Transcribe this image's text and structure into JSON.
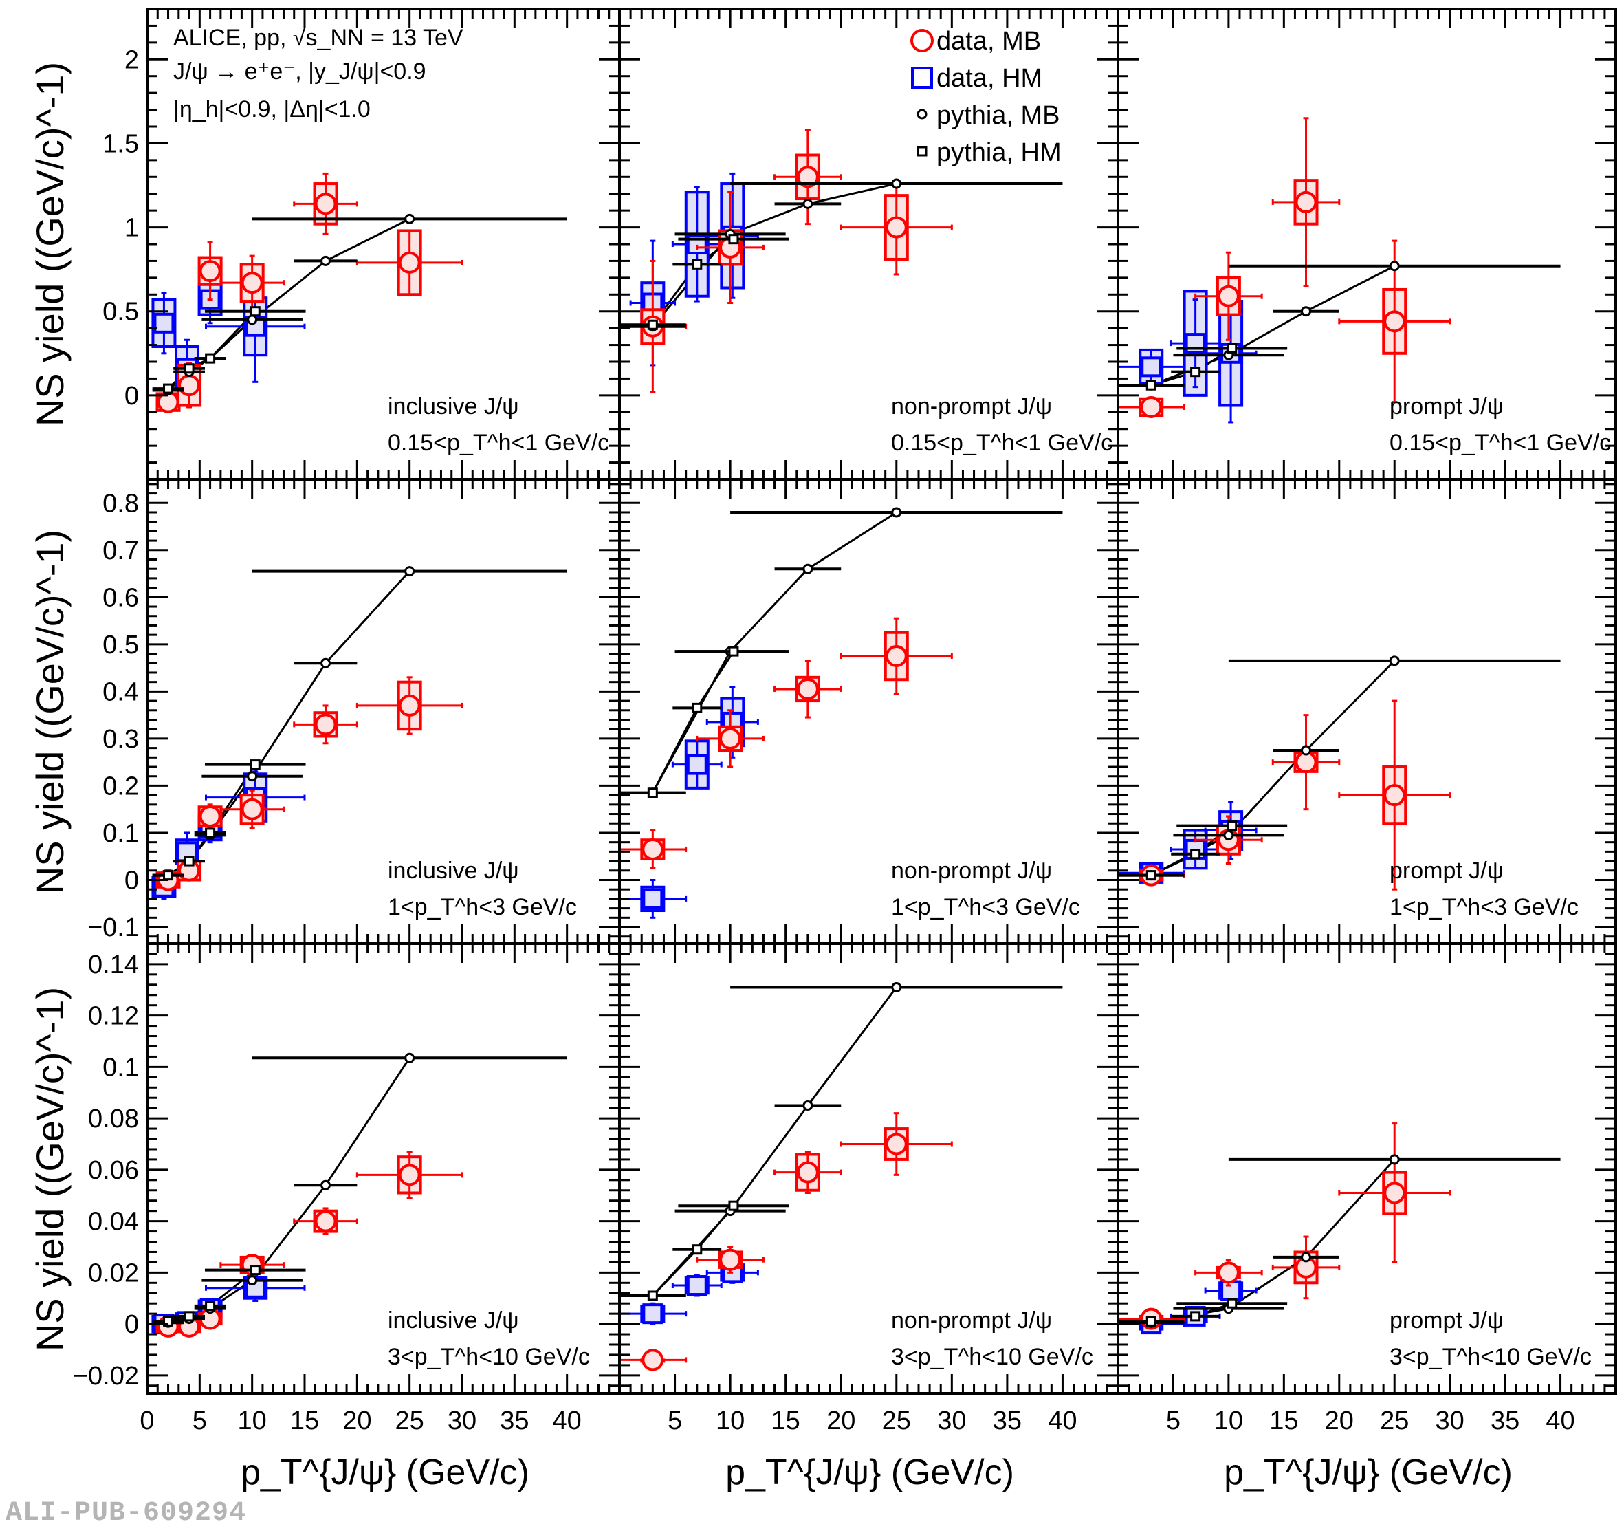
{
  "watermark": "ALI-PUB-609294",
  "colors": {
    "mb": "#ff0000",
    "hm": "#0000ff",
    "pythia": "#000000",
    "mb_fill": "#fde2e2",
    "hm_fill": "#e0e0f8"
  },
  "legend": [
    {
      "key": "data_mb",
      "label": "data, MB",
      "marker": "open-circle",
      "color": "#ff0000"
    },
    {
      "key": "data_hm",
      "label": "data, HM",
      "marker": "open-square",
      "color": "#0000ff"
    },
    {
      "key": "pythia_mb",
      "label": "pythia, MB",
      "marker": "small-open-circle",
      "color": "#000000"
    },
    {
      "key": "pythia_hm",
      "label": "pythia, HM",
      "marker": "small-open-square",
      "color": "#000000"
    }
  ],
  "header_text": {
    "line1": "ALICE, pp,  √s_NN = 13 TeV",
    "line2": "J/ψ  → e⁺e⁻, |y_J/ψ|<0.9",
    "line3": "|η_h|<0.9, |Δη|<1.0"
  },
  "chart_data": {
    "type": "scatter",
    "title": "",
    "xlabel": "p_T^{J/ψ} (GeV/c)",
    "ylabel": "NS yield ((GeV/c)^-1)",
    "xlim": [
      0,
      45
    ],
    "xticks": [
      0,
      5,
      10,
      15,
      20,
      25,
      30,
      35,
      40
    ],
    "legend_placement": "top-middle panel, upper-right",
    "grid": false,
    "rows": [
      {
        "assoc_label": "0.15<p_T^h<1 GeV/c",
        "ylim": [
          -0.5,
          2.3
        ],
        "yticks": [
          "0",
          "0.5",
          "1",
          "1.5",
          "2"
        ],
        "ytick_values": [
          0,
          0.5,
          1,
          1.5,
          2
        ]
      },
      {
        "assoc_label": "1<p_T^h<3 GeV/c",
        "ylim": [
          -0.135,
          0.85
        ],
        "yticks": [
          "−0.1",
          "0",
          "0.1",
          "0.2",
          "0.3",
          "0.4",
          "0.5",
          "0.6",
          "0.7",
          "0.8"
        ],
        "ytick_values": [
          -0.1,
          0,
          0.1,
          0.2,
          0.3,
          0.4,
          0.5,
          0.6,
          0.7,
          0.8
        ]
      },
      {
        "assoc_label": "3<p_T^h<10 GeV/c",
        "ylim": [
          -0.027,
          0.148
        ],
        "yticks": [
          "−0.02",
          "0",
          "0.02",
          "0.04",
          "0.06",
          "0.08",
          "0.1",
          "0.12",
          "0.14"
        ],
        "ytick_values": [
          -0.02,
          0,
          0.02,
          0.04,
          0.06,
          0.08,
          0.1,
          0.12,
          0.14
        ]
      }
    ],
    "columns": [
      "inclusive J/ψ",
      "non-prompt J/ψ",
      "prompt J/ψ"
    ],
    "panels": [
      {
        "row": 0,
        "col": 0,
        "data_mb": [
          [
            2,
            -0.04,
            1,
            0.03,
            0.05
          ],
          [
            4,
            0.06,
            1,
            0.13,
            0.12
          ],
          [
            6,
            0.74,
            1,
            0.17,
            0.08
          ],
          [
            10,
            0.67,
            3,
            0.16,
            0.11
          ],
          [
            17,
            1.14,
            3,
            0.18,
            0.12
          ],
          [
            25,
            0.79,
            5,
            0.19,
            0.19
          ]
        ],
        "data_hm": [
          [
            1.6,
            0.43,
            1,
            0.18,
            0.14
          ],
          [
            3.8,
            0.16,
            1,
            0.17,
            0.13
          ],
          [
            6,
            0.57,
            1,
            0.14,
            0.09
          ],
          [
            10.3,
            0.41,
            4.7,
            0.33,
            0.17
          ]
        ],
        "pythia_mb": [
          [
            2,
            0.03,
            1.5
          ],
          [
            4,
            0.14,
            1.5
          ],
          [
            6,
            0.22,
            1.5
          ],
          [
            10,
            0.45,
            4.8
          ],
          [
            17,
            0.8,
            3
          ],
          [
            25,
            1.05,
            15
          ]
        ],
        "pythia_hm": [
          [
            2,
            0.04,
            1.5
          ],
          [
            4,
            0.16,
            1.5
          ],
          [
            6,
            0.22,
            1.5
          ],
          [
            10.3,
            0.5,
            4.8
          ]
        ]
      },
      {
        "row": 0,
        "col": 1,
        "data_mb": [
          [
            3,
            0.41,
            3,
            0.39,
            0.1
          ],
          [
            10,
            0.88,
            3,
            0.33,
            0.1
          ],
          [
            17,
            1.3,
            3,
            0.28,
            0.13
          ],
          [
            25,
            1.0,
            5,
            0.28,
            0.19
          ]
        ],
        "data_hm": [
          [
            3,
            0.55,
            2,
            0.37,
            0.12
          ],
          [
            7,
            0.9,
            2.2,
            0.34,
            0.31
          ],
          [
            10.2,
            0.95,
            2.3,
            0.37,
            0.31
          ]
        ],
        "pythia_mb": [
          [
            3,
            0.41,
            3
          ],
          [
            10,
            0.96,
            5
          ],
          [
            17,
            1.14,
            3
          ],
          [
            25,
            1.26,
            15
          ]
        ],
        "pythia_hm": [
          [
            3,
            0.42,
            3
          ],
          [
            7,
            0.78,
            2.2
          ],
          [
            10.3,
            0.93,
            5
          ]
        ]
      },
      {
        "row": 0,
        "col": 2,
        "data_mb": [
          [
            3,
            -0.07,
            3,
            0.02,
            0.05
          ],
          [
            10,
            0.59,
            3,
            0.26,
            0.11
          ],
          [
            17,
            1.15,
            3,
            0.5,
            0.13
          ],
          [
            25,
            0.44,
            5,
            0.48,
            0.19
          ]
        ],
        "data_hm": [
          [
            3,
            0.17,
            3,
            0.1,
            0.1
          ],
          [
            7,
            0.31,
            2.2,
            0.26,
            0.31
          ],
          [
            10.2,
            0.25,
            2.3,
            0.41,
            0.31
          ]
        ],
        "pythia_mb": [
          [
            3,
            0.06,
            3
          ],
          [
            10,
            0.24,
            5
          ],
          [
            17,
            0.5,
            3
          ],
          [
            25,
            0.77,
            15
          ]
        ],
        "pythia_hm": [
          [
            3,
            0.06,
            3
          ],
          [
            7,
            0.14,
            2.2
          ],
          [
            10.3,
            0.28,
            5
          ]
        ]
      },
      {
        "row": 1,
        "col": 0,
        "data_mb": [
          [
            2,
            0.0,
            1,
            0.02,
            0.015
          ],
          [
            4,
            0.02,
            1,
            0.02,
            0.02
          ],
          [
            6,
            0.135,
            1,
            0.025,
            0.02
          ],
          [
            10,
            0.15,
            3,
            0.04,
            0.03
          ],
          [
            17,
            0.33,
            3,
            0.04,
            0.025
          ],
          [
            25,
            0.37,
            5,
            0.06,
            0.05
          ]
        ],
        "data_hm": [
          [
            1.6,
            -0.015,
            1,
            0.025,
            0.02
          ],
          [
            3.8,
            0.06,
            1,
            0.04,
            0.025
          ],
          [
            6,
            0.11,
            1,
            0.03,
            0.025
          ],
          [
            10.3,
            0.175,
            4.7,
            0.055,
            0.05
          ]
        ],
        "pythia_mb": [
          [
            2,
            0.01,
            1.5
          ],
          [
            4,
            0.04,
            1.5
          ],
          [
            6,
            0.095,
            1.5
          ],
          [
            10,
            0.22,
            4.8
          ],
          [
            17,
            0.46,
            3
          ],
          [
            25,
            0.655,
            15
          ]
        ],
        "pythia_hm": [
          [
            2,
            0.01,
            1.5
          ],
          [
            4,
            0.04,
            1.5
          ],
          [
            6,
            0.1,
            1.5
          ],
          [
            10.3,
            0.245,
            4.8
          ]
        ]
      },
      {
        "row": 1,
        "col": 1,
        "data_mb": [
          [
            3,
            0.065,
            3,
            0.04,
            0.02
          ],
          [
            10,
            0.3,
            3,
            0.06,
            0.025
          ],
          [
            17,
            0.405,
            3,
            0.06,
            0.025
          ],
          [
            25,
            0.475,
            5,
            0.08,
            0.05
          ]
        ],
        "data_hm": [
          [
            3,
            -0.04,
            3,
            0.04,
            0.025
          ],
          [
            7,
            0.245,
            2.2,
            0.05,
            0.05
          ],
          [
            10.2,
            0.335,
            2.3,
            0.075,
            0.05
          ]
        ],
        "pythia_mb": [
          [
            3,
            0.185,
            3
          ],
          [
            10,
            0.485,
            5
          ],
          [
            17,
            0.66,
            3
          ],
          [
            25,
            0.78,
            15
          ]
        ],
        "pythia_hm": [
          [
            3,
            0.185,
            3
          ],
          [
            7,
            0.365,
            2.2
          ],
          [
            10.3,
            0.485,
            5
          ]
        ]
      },
      {
        "row": 1,
        "col": 2,
        "data_mb": [
          [
            3,
            0.01,
            3,
            0.01,
            0.01
          ],
          [
            10,
            0.085,
            3,
            0.05,
            0.03
          ],
          [
            17,
            0.25,
            3,
            0.1,
            0.02
          ],
          [
            25,
            0.18,
            5,
            0.2,
            0.06
          ]
        ],
        "data_hm": [
          [
            3,
            0.015,
            3,
            0.02,
            0.02
          ],
          [
            7,
            0.065,
            2.2,
            0.04,
            0.04
          ],
          [
            10.2,
            0.105,
            2.3,
            0.06,
            0.04
          ]
        ],
        "pythia_mb": [
          [
            3,
            0.01,
            3
          ],
          [
            10,
            0.095,
            5
          ],
          [
            17,
            0.275,
            3
          ],
          [
            25,
            0.465,
            15
          ]
        ],
        "pythia_hm": [
          [
            3,
            0.01,
            3
          ],
          [
            7,
            0.055,
            2.2
          ],
          [
            10.3,
            0.115,
            5
          ]
        ]
      },
      {
        "row": 2,
        "col": 0,
        "data_mb": [
          [
            2,
            -0.001,
            1,
            0.002,
            0.002
          ],
          [
            4,
            -0.001,
            1,
            0.002,
            0.002
          ],
          [
            6,
            0.002,
            1,
            0.003,
            0.002
          ],
          [
            10,
            0.023,
            3,
            0.003,
            0.003
          ],
          [
            17,
            0.04,
            3,
            0.005,
            0.004
          ],
          [
            25,
            0.058,
            5,
            0.009,
            0.007
          ]
        ],
        "data_hm": [
          [
            1.6,
            0.0,
            1,
            0.002,
            0.003
          ],
          [
            3.8,
            0.001,
            1,
            0.002,
            0.003
          ],
          [
            6,
            0.006,
            1,
            0.003,
            0.003
          ],
          [
            10.3,
            0.014,
            4.7,
            0.005,
            0.004
          ]
        ],
        "pythia_mb": [
          [
            2,
            0.0005,
            1.5
          ],
          [
            4,
            0.002,
            1.5
          ],
          [
            6,
            0.006,
            1.5
          ],
          [
            10,
            0.017,
            4.8
          ],
          [
            17,
            0.054,
            3
          ],
          [
            25,
            0.1035,
            15
          ]
        ],
        "pythia_hm": [
          [
            2,
            0.001,
            1.5
          ],
          [
            4,
            0.003,
            1.5
          ],
          [
            6,
            0.007,
            1.5
          ],
          [
            10.3,
            0.021,
            4.8
          ]
        ]
      },
      {
        "row": 2,
        "col": 1,
        "data_mb": [
          [
            3,
            -0.014,
            3,
            0.0,
            0.0
          ],
          [
            10,
            0.025,
            3,
            0.005,
            0.003
          ],
          [
            17,
            0.059,
            3,
            0.008,
            0.007
          ],
          [
            25,
            0.07,
            5,
            0.012,
            0.006
          ]
        ],
        "data_hm": [
          [
            3,
            0.004,
            3,
            0.004,
            0.003
          ],
          [
            7,
            0.015,
            2.2,
            0.004,
            0.003
          ],
          [
            10.2,
            0.02,
            2.3,
            0.004,
            0.003
          ]
        ],
        "pythia_mb": [
          [
            3,
            0.011,
            3
          ],
          [
            10,
            0.044,
            5
          ],
          [
            17,
            0.085,
            3
          ],
          [
            25,
            0.131,
            15
          ]
        ],
        "pythia_hm": [
          [
            3,
            0.011,
            3
          ],
          [
            7,
            0.029,
            2.2
          ],
          [
            10.3,
            0.046,
            5
          ]
        ]
      },
      {
        "row": 2,
        "col": 2,
        "data_mb": [
          [
            3,
            0.002,
            3,
            0.002,
            0.001
          ],
          [
            10,
            0.02,
            3,
            0.005,
            0.002
          ],
          [
            17,
            0.022,
            3,
            0.012,
            0.006
          ],
          [
            25,
            0.051,
            5,
            0.027,
            0.008
          ]
        ],
        "data_hm": [
          [
            3,
            0.0,
            3,
            0.002,
            0.002
          ],
          [
            7,
            0.003,
            2.2,
            0.003,
            0.002
          ],
          [
            10.2,
            0.013,
            2.3,
            0.004,
            0.003
          ]
        ],
        "pythia_mb": [
          [
            3,
            0.0005,
            3
          ],
          [
            10,
            0.006,
            5
          ],
          [
            17,
            0.026,
            3
          ],
          [
            25,
            0.064,
            15
          ]
        ],
        "pythia_hm": [
          [
            3,
            0.001,
            3
          ],
          [
            7,
            0.003,
            2.2
          ],
          [
            10.3,
            0.008,
            5
          ]
        ]
      }
    ],
    "point_format": {
      "data": "[x, y, x_halfwidth, stat_err, syst_err]",
      "pythia": "[x, y, x_halfwidth]"
    }
  }
}
